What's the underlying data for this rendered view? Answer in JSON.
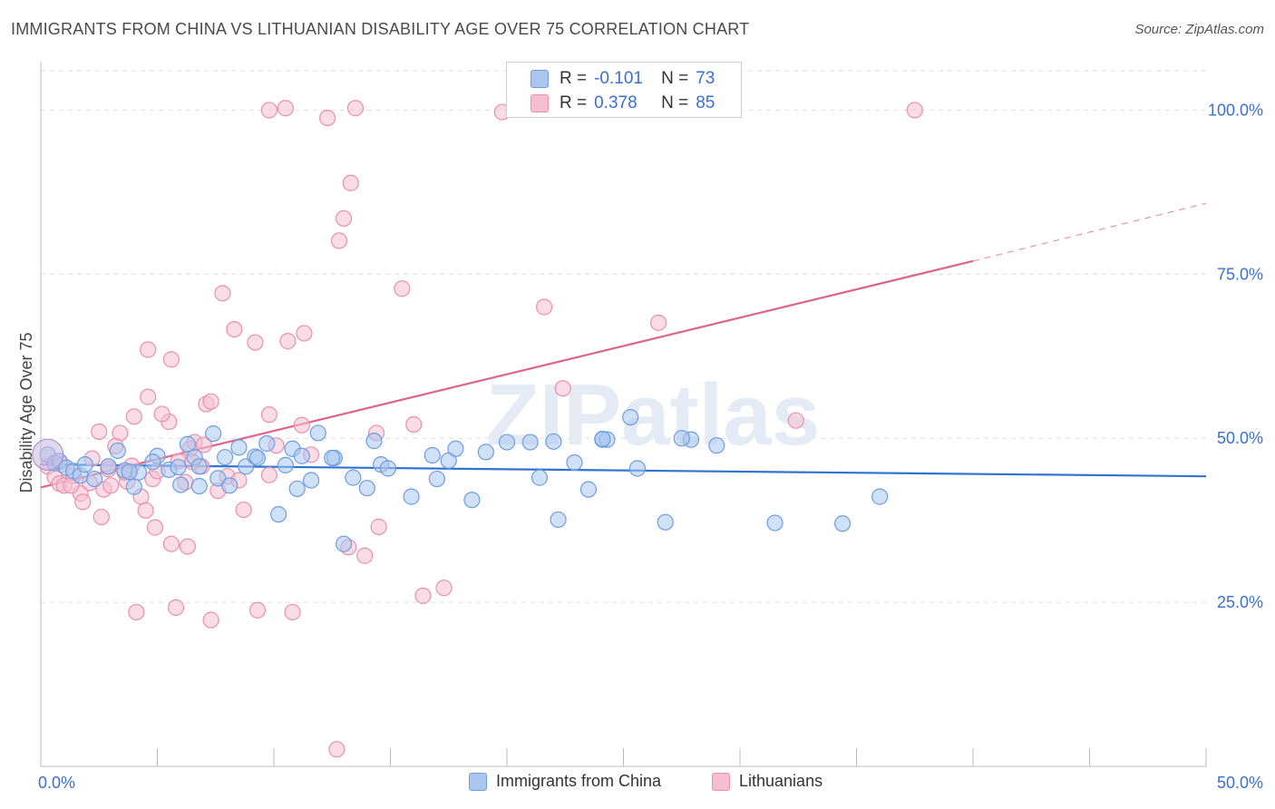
{
  "title": "IMMIGRANTS FROM CHINA VS LITHUANIAN DISABILITY AGE OVER 75 CORRELATION CHART",
  "source": "Source: ZipAtlas.com",
  "watermark": "ZIPatlas",
  "legend": {
    "rows": [
      {
        "r_label": "R =",
        "r_value": "-0.101",
        "n_label": "N =",
        "n_value": "73"
      },
      {
        "r_label": "R =",
        "r_value": "0.378",
        "n_label": "N =",
        "n_value": "85"
      }
    ]
  },
  "chart_data": {
    "type": "scatter",
    "title": "IMMIGRANTS FROM CHINA VS LITHUANIAN DISABILITY AGE OVER 75 CORRELATION CHART",
    "xlabel": "",
    "ylabel": "Disability Age Over 75",
    "xlim": [
      0,
      50
    ],
    "ylim": [
      0,
      106
    ],
    "x_tick_labels": [
      "0.0%",
      "50.0%"
    ],
    "y_ticks": [
      25,
      50,
      75,
      100
    ],
    "y_tick_labels": [
      "25.0%",
      "50.0%",
      "75.0%",
      "100.0%"
    ],
    "grid": true,
    "legend_position": "top-center",
    "colors": {
      "china_fill": "#aac6ef",
      "china_stroke": "#6d9de0",
      "china_line": "#2f74d0",
      "lith_fill": "#f6bfd1",
      "lith_stroke": "#ea8fae",
      "lith_line": "#e0628f",
      "axis_text": "#3b6fd0",
      "grid": "#dddddd"
    },
    "series": [
      {
        "name": "Immigrants from China",
        "trend": {
          "x0": 0,
          "y0": 46.0,
          "x1": 50,
          "y1": 44.2
        },
        "points": [
          [
            0.3,
            47.5
          ],
          [
            0.6,
            46.2
          ],
          [
            0.8,
            46.5
          ],
          [
            1.1,
            45.5
          ],
          [
            1.4,
            45.0
          ],
          [
            1.7,
            44.3
          ],
          [
            1.9,
            46.0
          ],
          [
            2.3,
            43.8
          ],
          [
            2.9,
            45.7
          ],
          [
            3.3,
            48.1
          ],
          [
            3.6,
            45.1
          ],
          [
            4.0,
            42.6
          ],
          [
            4.2,
            44.8
          ],
          [
            5.0,
            47.3
          ],
          [
            5.5,
            45.2
          ],
          [
            5.9,
            45.6
          ],
          [
            6.0,
            42.9
          ],
          [
            6.3,
            49.1
          ],
          [
            6.6,
            47.1
          ],
          [
            6.8,
            45.7
          ],
          [
            7.4,
            50.7
          ],
          [
            7.6,
            43.9
          ],
          [
            7.9,
            47.1
          ],
          [
            8.1,
            42.8
          ],
          [
            8.5,
            48.6
          ],
          [
            8.8,
            45.7
          ],
          [
            9.2,
            47.2
          ],
          [
            9.3,
            47.0
          ],
          [
            9.7,
            49.2
          ],
          [
            10.2,
            38.4
          ],
          [
            10.5,
            45.9
          ],
          [
            10.8,
            48.4
          ],
          [
            11.0,
            42.3
          ],
          [
            11.2,
            47.3
          ],
          [
            11.6,
            43.6
          ],
          [
            11.9,
            50.8
          ],
          [
            12.6,
            47.0
          ],
          [
            13.0,
            33.9
          ],
          [
            13.4,
            44.0
          ],
          [
            14.0,
            42.4
          ],
          [
            14.3,
            49.6
          ],
          [
            14.6,
            46.0
          ],
          [
            14.9,
            45.4
          ],
          [
            15.9,
            41.1
          ],
          [
            16.8,
            47.4
          ],
          [
            17.0,
            43.8
          ],
          [
            17.5,
            46.6
          ],
          [
            17.8,
            48.4
          ],
          [
            18.5,
            40.6
          ],
          [
            19.1,
            47.9
          ],
          [
            20.0,
            49.4
          ],
          [
            21.0,
            49.4
          ],
          [
            21.4,
            44.0
          ],
          [
            22.0,
            49.5
          ],
          [
            22.2,
            37.6
          ],
          [
            22.9,
            46.3
          ],
          [
            23.5,
            42.2
          ],
          [
            24.1,
            49.8
          ],
          [
            24.3,
            49.8
          ],
          [
            24.1,
            49.9
          ],
          [
            25.3,
            53.2
          ],
          [
            25.6,
            45.4
          ],
          [
            26.8,
            37.2
          ],
          [
            27.9,
            49.8
          ],
          [
            29.0,
            48.9
          ],
          [
            31.5,
            37.1
          ],
          [
            34.4,
            37.0
          ],
          [
            36.0,
            41.1
          ],
          [
            27.5,
            50.0
          ],
          [
            12.5,
            47.0
          ],
          [
            4.8,
            46.4
          ],
          [
            3.8,
            44.9
          ],
          [
            6.8,
            42.7
          ]
        ]
      },
      {
        "name": "Lithuanians",
        "trend": {
          "x0": 0,
          "y0": 42.5,
          "x1": 40,
          "y1": 77.0,
          "dash_to_x": 50,
          "dash_to_y": 85.8
        },
        "points": [
          [
            0.3,
            45.7
          ],
          [
            0.6,
            44.1
          ],
          [
            0.8,
            43.1
          ],
          [
            1.0,
            42.8
          ],
          [
            1.4,
            44.3
          ],
          [
            1.7,
            41.6
          ],
          [
            1.8,
            40.3
          ],
          [
            2.1,
            43.2
          ],
          [
            2.5,
            51.0
          ],
          [
            2.7,
            42.2
          ],
          [
            2.9,
            45.3
          ],
          [
            3.4,
            50.8
          ],
          [
            3.7,
            43.4
          ],
          [
            3.9,
            45.8
          ],
          [
            4.0,
            53.3
          ],
          [
            4.3,
            41.1
          ],
          [
            4.5,
            39.0
          ],
          [
            4.6,
            63.5
          ],
          [
            4.8,
            43.8
          ],
          [
            4.9,
            36.4
          ],
          [
            5.5,
            52.5
          ],
          [
            5.6,
            62.0
          ],
          [
            5.9,
            46.5
          ],
          [
            6.2,
            43.3
          ],
          [
            6.4,
            48.4
          ],
          [
            6.6,
            49.4
          ],
          [
            7.1,
            55.2
          ],
          [
            7.3,
            55.6
          ],
          [
            7.8,
            72.1
          ],
          [
            8.0,
            44.2
          ],
          [
            8.3,
            66.6
          ],
          [
            9.2,
            64.6
          ],
          [
            9.8,
            53.6
          ],
          [
            10.6,
            64.8
          ],
          [
            11.3,
            66.0
          ],
          [
            12.3,
            98.8
          ],
          [
            12.8,
            80.1
          ],
          [
            13.0,
            83.5
          ],
          [
            13.3,
            88.9
          ],
          [
            14.4,
            50.8
          ],
          [
            15.5,
            72.8
          ],
          [
            16.0,
            52.1
          ],
          [
            12.7,
            2.6
          ],
          [
            10.8,
            23.5
          ],
          [
            9.3,
            23.8
          ],
          [
            7.3,
            22.3
          ],
          [
            5.8,
            24.2
          ],
          [
            6.3,
            33.5
          ],
          [
            5.6,
            33.9
          ],
          [
            4.1,
            23.5
          ],
          [
            2.6,
            38.0
          ],
          [
            2.2,
            46.9
          ],
          [
            3.2,
            48.8
          ],
          [
            4.6,
            56.3
          ],
          [
            5.2,
            53.7
          ],
          [
            3.0,
            42.8
          ],
          [
            6.9,
            45.7
          ],
          [
            7.6,
            42.0
          ],
          [
            8.7,
            39.1
          ],
          [
            9.8,
            44.4
          ],
          [
            10.1,
            48.9
          ],
          [
            13.9,
            32.1
          ],
          [
            14.5,
            36.5
          ],
          [
            16.4,
            26.0
          ],
          [
            17.3,
            27.2
          ],
          [
            19.8,
            99.7
          ],
          [
            21.6,
            70.0
          ],
          [
            22.4,
            57.6
          ],
          [
            32.4,
            52.7
          ],
          [
            26.5,
            67.6
          ],
          [
            37.5,
            100.0
          ],
          [
            13.5,
            100.3
          ],
          [
            10.5,
            100.3
          ],
          [
            9.8,
            100.0
          ],
          [
            11.2,
            52.0
          ],
          [
            11.6,
            47.5
          ],
          [
            0.9,
            46.0
          ],
          [
            1.3,
            42.8
          ],
          [
            2.9,
            45.7
          ],
          [
            3.6,
            44.8
          ],
          [
            5.0,
            45.0
          ],
          [
            6.5,
            46.4
          ],
          [
            7.0,
            49.0
          ],
          [
            8.5,
            43.6
          ],
          [
            13.2,
            33.4
          ]
        ]
      }
    ]
  }
}
